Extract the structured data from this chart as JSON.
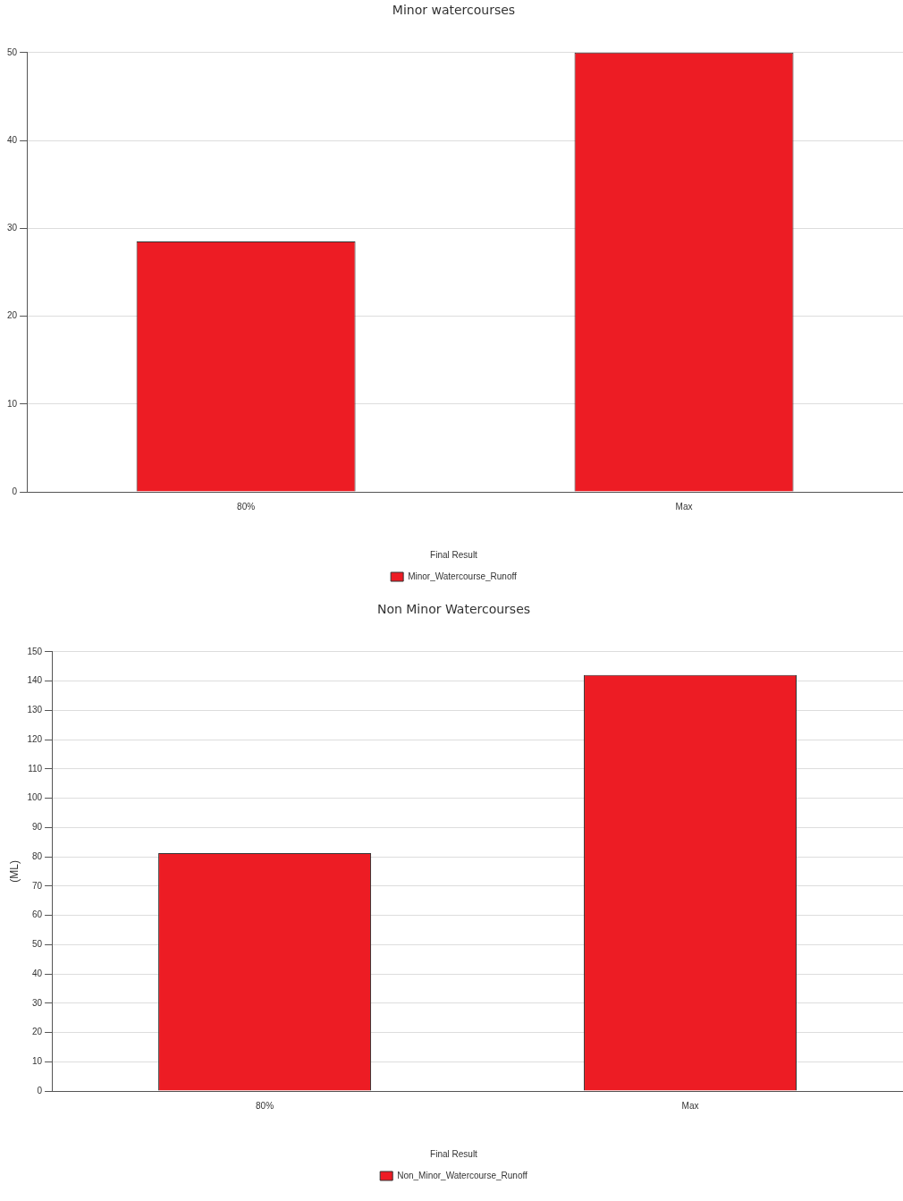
{
  "chart_data": [
    {
      "type": "bar",
      "title": "Minor watercourses",
      "legend_title": "Final Result",
      "categories": [
        "80%",
        "Max"
      ],
      "series": [
        {
          "name": "Minor_Watercourse_Runoff",
          "color": "#ed1c24",
          "values": [
            28.5,
            50
          ]
        }
      ],
      "ylim": [
        0,
        50
      ],
      "yticks": [
        0,
        10,
        20,
        30,
        40,
        50
      ],
      "grid": "y",
      "legend": "bottom"
    },
    {
      "type": "bar",
      "title": "Non Minor Watercourses",
      "ylabel": "(ML)",
      "legend_title": "Final Result",
      "categories": [
        "80%",
        "Max"
      ],
      "series": [
        {
          "name": "Non_Minor_Watercourse_Runoff",
          "color": "#ed1c24",
          "values": [
            81.2,
            142.1
          ]
        }
      ],
      "ylim": [
        0,
        150
      ],
      "yticks": [
        0,
        10,
        20,
        30,
        40,
        50,
        60,
        70,
        80,
        90,
        100,
        110,
        120,
        130,
        140,
        150
      ],
      "grid": "y",
      "legend": "bottom"
    }
  ]
}
